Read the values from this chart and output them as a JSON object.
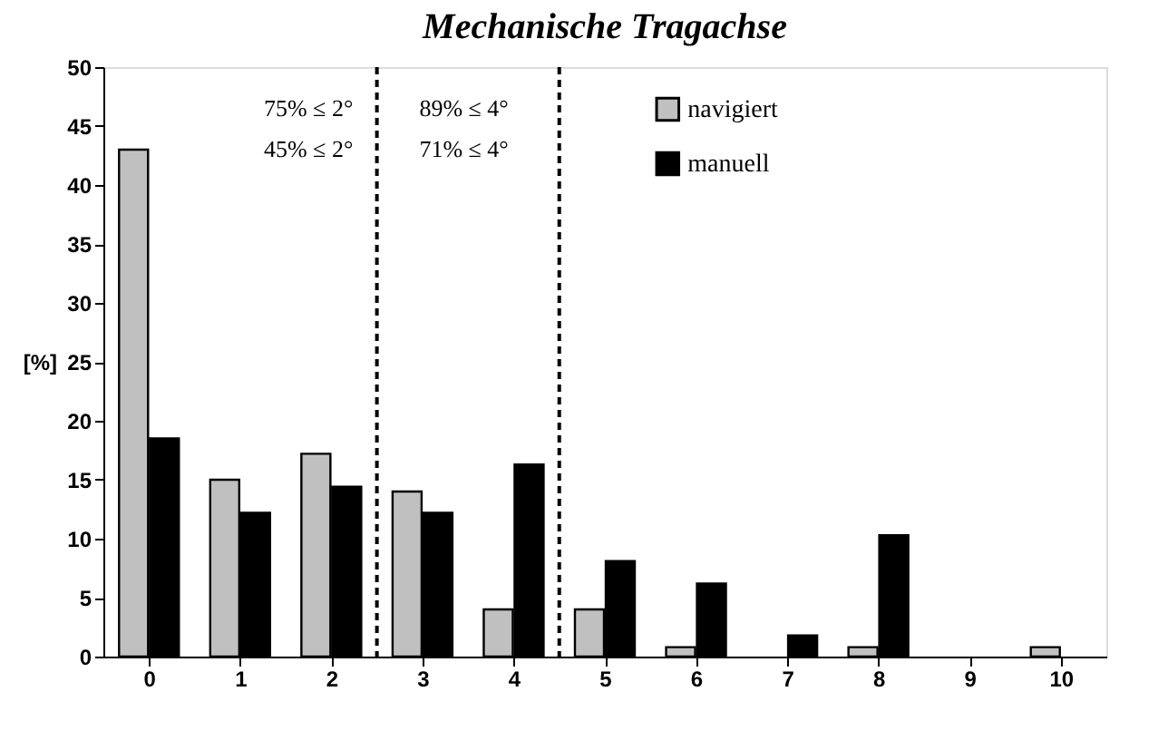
{
  "chart_data": {
    "type": "bar",
    "title": "Mechanische Tragachse",
    "ylabel": "[%]",
    "x": [
      0,
      1,
      2,
      3,
      4,
      5,
      6,
      7,
      8,
      9,
      10
    ],
    "series": [
      {
        "name": "navigiert",
        "color": "#c0c0c0",
        "values": [
          43,
          15,
          17.2,
          14,
          4,
          4,
          0.8,
          0,
          0.8,
          0,
          0.8
        ]
      },
      {
        "name": "manuell",
        "color": "#000000",
        "values": [
          18.5,
          12.2,
          14.4,
          12.2,
          16.3,
          8.1,
          6.2,
          1.8,
          10.3,
          0,
          0
        ]
      }
    ],
    "xlim": [
      -0.5,
      10.5
    ],
    "xticks": [
      0,
      1,
      2,
      3,
      4,
      5,
      6,
      7,
      8,
      9,
      10
    ],
    "ylim": [
      0,
      50
    ],
    "yticks": [
      0,
      5,
      10,
      15,
      20,
      25,
      30,
      35,
      40,
      45,
      50
    ],
    "ref_lines": [
      {
        "axis": "x",
        "value": 2.5,
        "line_style": "dashed",
        "color": "#000000"
      },
      {
        "axis": "x",
        "value": 4.5,
        "line_style": "dashed",
        "color": "#000000"
      }
    ],
    "annotations": [
      "75% ≤ 2°",
      "45% ≤ 2°",
      "89% ≤ 4°",
      "71% ≤ 4°"
    ],
    "legend": "top right",
    "grid": false
  }
}
